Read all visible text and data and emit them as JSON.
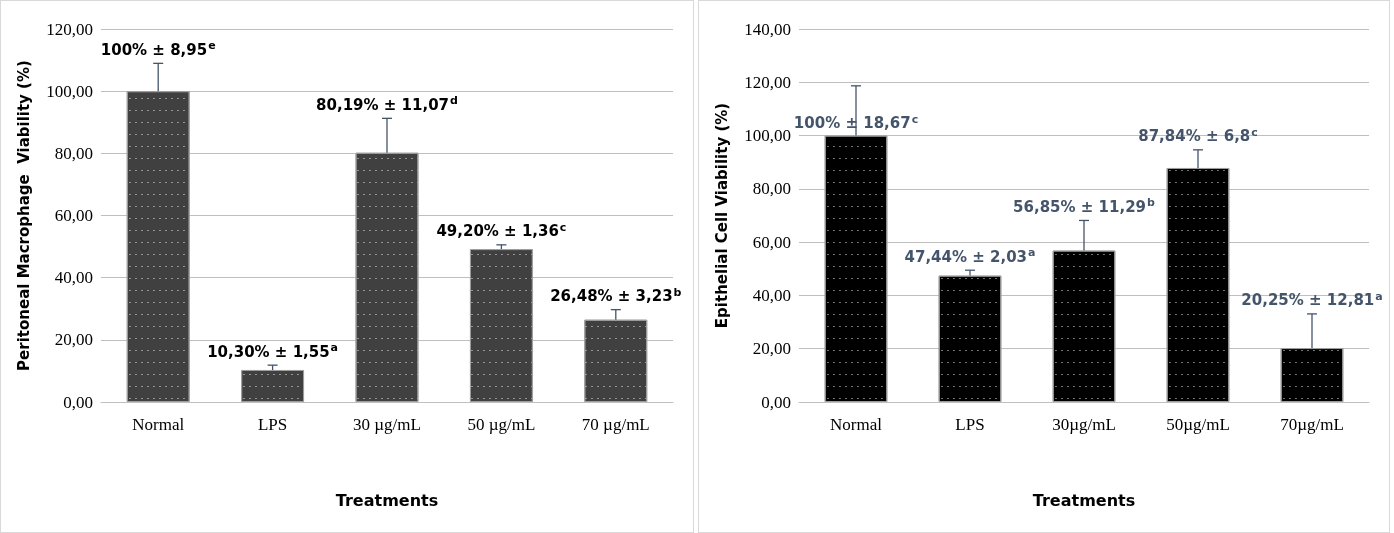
{
  "chart_data": [
    {
      "type": "bar",
      "xlabel": "Treatments",
      "ylabel": "Peritoneal Macrophage  Viability (%)",
      "categories": [
        "Normal",
        "LPS",
        "30 µg/mL",
        "50 µg/mL",
        "70 µg/mL"
      ],
      "series": [
        {
          "color": "#404040",
          "values": [
            100,
            10.3,
            80.19,
            49.2,
            26.48
          ],
          "errors": [
            [
              100,
              108.95
            ],
            [
              10.3,
              11.85
            ],
            [
              80.19,
              91.26
            ],
            [
              49.2,
              50.56
            ],
            [
              26.48,
              29.71
            ]
          ],
          "value_labels": [
            "100% ± 8,95$^{e}$",
            "10,30% ± 1,55$^{a}$",
            "80,19% ± 11,07$^{d}$",
            "49,20% ± 1,36$^{c}$",
            "26,48% ± 3,23$^{b}$"
          ]
        }
      ],
      "ylim": [
        0,
        120
      ],
      "yticks": [
        {
          "value": 0,
          "label": "0,00"
        },
        {
          "value": 20,
          "label": "20,00"
        },
        {
          "value": 40,
          "label": "40,00"
        },
        {
          "value": 60,
          "label": "60,00"
        },
        {
          "value": 80,
          "label": "80,00"
        },
        {
          "value": 100,
          "label": "100,00"
        },
        {
          "value": 120,
          "label": "120,00"
        }
      ],
      "grid": "y"
    },
    {
      "type": "bar",
      "xlabel": "Treatments",
      "ylabel": "Epithelial Cell Viability (%)",
      "categories": [
        "Normal",
        "LPS",
        "30µg/mL",
        "50µg/mL",
        "70µg/mL"
      ],
      "series": [
        {
          "color": "#000000",
          "values": [
            100,
            47.44,
            56.85,
            87.84,
            20.25
          ],
          "errors": [
            [
              100,
              118.67
            ],
            [
              47.44,
              49.47
            ],
            [
              56.85,
              68.14
            ],
            [
              87.84,
              94.64
            ],
            [
              20.25,
              33.06
            ]
          ],
          "value_labels": [
            "100% ± 18,67$^{c}$",
            "47,44% ± 2,03$^{a}$",
            "56,85% ± 11,29$^{b}$",
            "87,84% ± 6,8$^{c}$",
            "20,25% ± 12,81$^{a}$"
          ]
        }
      ],
      "ylim": [
        0,
        140
      ],
      "yticks": [
        {
          "value": 0,
          "label": "0,00"
        },
        {
          "value": 20,
          "label": "20,00"
        },
        {
          "value": 40,
          "label": "40,00"
        },
        {
          "value": 60,
          "label": "60,00"
        },
        {
          "value": 80,
          "label": "80,00"
        },
        {
          "value": 100,
          "label": "100,00"
        },
        {
          "value": 120,
          "label": "120,00"
        },
        {
          "value": 140,
          "label": "140,00"
        }
      ],
      "grid": "y"
    }
  ]
}
